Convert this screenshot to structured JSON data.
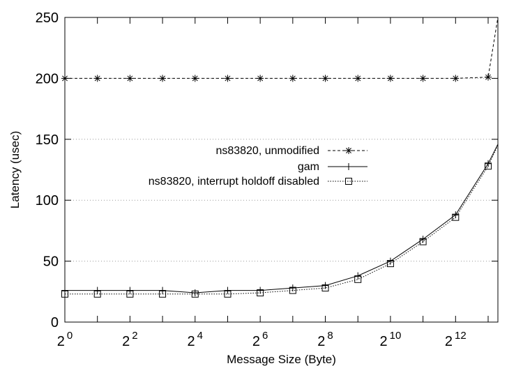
{
  "chart_data": {
    "type": "line",
    "title": "",
    "xlabel": "Message Size (Byte)",
    "ylabel": "Latency (usec)",
    "x_scale": "log2",
    "x_tick_base": "2",
    "x_ticks": [
      0,
      2,
      4,
      6,
      8,
      10,
      12
    ],
    "xlim_log2": [
      0,
      13.3
    ],
    "ylim": [
      0,
      250
    ],
    "y_ticks": [
      0,
      50,
      100,
      150,
      200,
      250
    ],
    "grid": "horizontal",
    "legend_position": "center-right",
    "series": [
      {
        "name": "ns83820, unmodified",
        "marker": "asterisk",
        "line": "dashed",
        "x_log2": [
          0,
          1,
          2,
          3,
          4,
          5,
          6,
          7,
          8,
          9,
          10,
          11,
          12,
          13,
          13.3
        ],
        "y": [
          200,
          200,
          200,
          200,
          200,
          200,
          200,
          200,
          200,
          200,
          200,
          200,
          200,
          201,
          250
        ]
      },
      {
        "name": "gam",
        "marker": "plus",
        "line": "solid",
        "x_log2": [
          0,
          1,
          2,
          3,
          4,
          5,
          6,
          7,
          8,
          9,
          10,
          11,
          12,
          13,
          13.3
        ],
        "y": [
          26,
          26,
          26,
          26,
          24,
          26,
          26,
          28,
          30,
          38,
          50,
          68,
          88,
          130,
          146
        ]
      },
      {
        "name": "ns83820, interrupt holdoff disabled",
        "marker": "square",
        "line": "dotted",
        "x_log2": [
          0,
          1,
          2,
          3,
          4,
          5,
          6,
          7,
          8,
          9,
          10,
          11,
          12,
          13,
          13.3
        ],
        "y": [
          23,
          23,
          23,
          23,
          23,
          23,
          24,
          26,
          28,
          35,
          48,
          66,
          86,
          128,
          145
        ]
      }
    ]
  }
}
